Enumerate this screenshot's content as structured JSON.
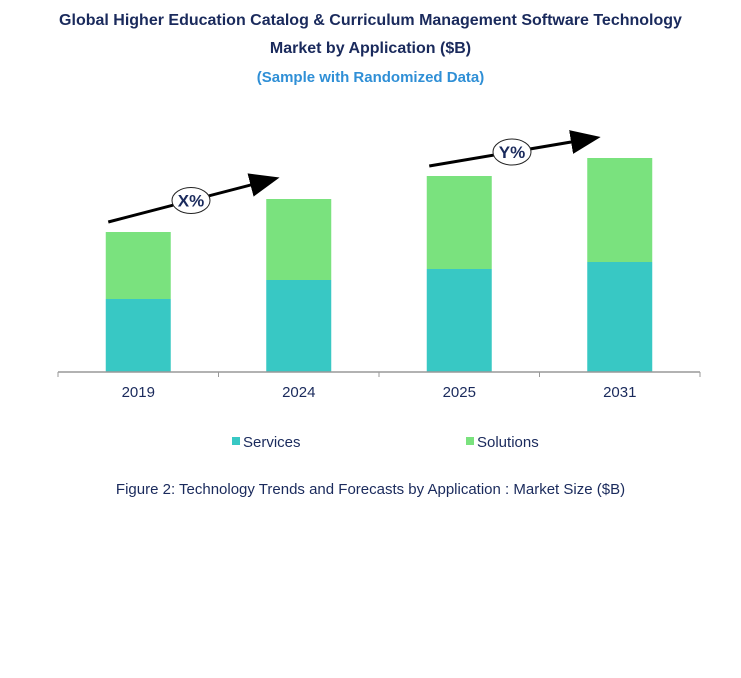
{
  "chart_data": {
    "type": "bar",
    "stacked": true,
    "title_line1": "Global Higher Education Catalog & Curriculum Management Software Technology",
    "title_line2": "Market by Application ($B)",
    "subtitle": "(Sample with Randomized Data)",
    "categories": [
      "2019",
      "2024",
      "2025",
      "2031"
    ],
    "series": [
      {
        "name": "Services",
        "color": "#38c8c4",
        "values": [
          73,
          92,
          103,
          110
        ]
      },
      {
        "name": "Solutions",
        "color": "#7ae27e",
        "values": [
          67,
          81,
          93,
          104
        ]
      }
    ],
    "ylim": [
      0,
      220
    ],
    "grid": false,
    "legend_position": "bottom",
    "annotations": [
      {
        "label": "X%",
        "from": "2019",
        "to": "2024"
      },
      {
        "label": "Y%",
        "from": "2025",
        "to": "2031"
      }
    ],
    "caption": "Figure 2: Technology  Trends  and Forecasts by Application : Market Size ($B)"
  }
}
